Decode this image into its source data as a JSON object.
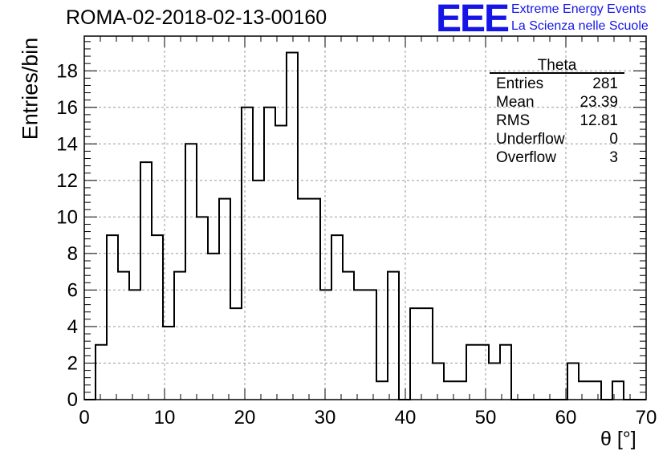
{
  "header": {
    "title": "ROMA-02-2018-02-13-00160",
    "logo_text": "EEE",
    "logo_line1": "Extreme Energy Events",
    "logo_line2": "La Scienza nelle Scuole"
  },
  "colors": {
    "logo": "#1515e6",
    "line": "#000000",
    "grid": "#999999"
  },
  "stats": {
    "name": "Theta",
    "rows": [
      {
        "label": "Entries",
        "value": "281"
      },
      {
        "label": "Mean",
        "value": "23.39"
      },
      {
        "label": "RMS",
        "value": "12.81"
      },
      {
        "label": "Underflow",
        "value": "0"
      },
      {
        "label": "Overflow",
        "value": "3"
      }
    ]
  },
  "chart_data": {
    "type": "bar",
    "style": "step-histogram",
    "xlabel": "θ [°]",
    "ylabel": "Entries/bin",
    "xlim": [
      0,
      70
    ],
    "ylim": [
      0,
      19.9
    ],
    "x_ticks": [
      0,
      10,
      20,
      30,
      40,
      50,
      60,
      70
    ],
    "y_ticks": [
      0,
      2,
      4,
      6,
      8,
      10,
      12,
      14,
      16,
      18
    ],
    "grid": true,
    "bin_edges": [
      0,
      1.4,
      2.8,
      4.2,
      5.6,
      7,
      8.4,
      9.8,
      11.2,
      12.6,
      14,
      15.4,
      16.8,
      18.2,
      19.6,
      21,
      22.4,
      23.8,
      25.2,
      26.6,
      28,
      29.4,
      30.8,
      32.2,
      33.6,
      35,
      36.4,
      37.8,
      39.2,
      40.6,
      42,
      43.4,
      44.8,
      46.2,
      47.6,
      49,
      50.4,
      51.8,
      53.2,
      54.6,
      56,
      57.4,
      58.8,
      60.2,
      61.6,
      63,
      64.4,
      65.8,
      67.2,
      68.6,
      70
    ],
    "values": [
      0,
      3,
      9,
      7,
      6,
      13,
      9,
      4,
      7,
      14,
      10,
      8,
      11,
      5,
      16,
      12,
      16,
      15,
      19,
      11,
      11,
      6,
      9,
      7,
      6,
      6,
      1,
      7,
      0,
      5,
      5,
      2,
      1,
      1,
      3,
      3,
      2,
      3,
      0,
      0,
      0,
      0,
      0,
      2,
      1,
      1,
      0,
      1,
      0,
      0
    ]
  }
}
